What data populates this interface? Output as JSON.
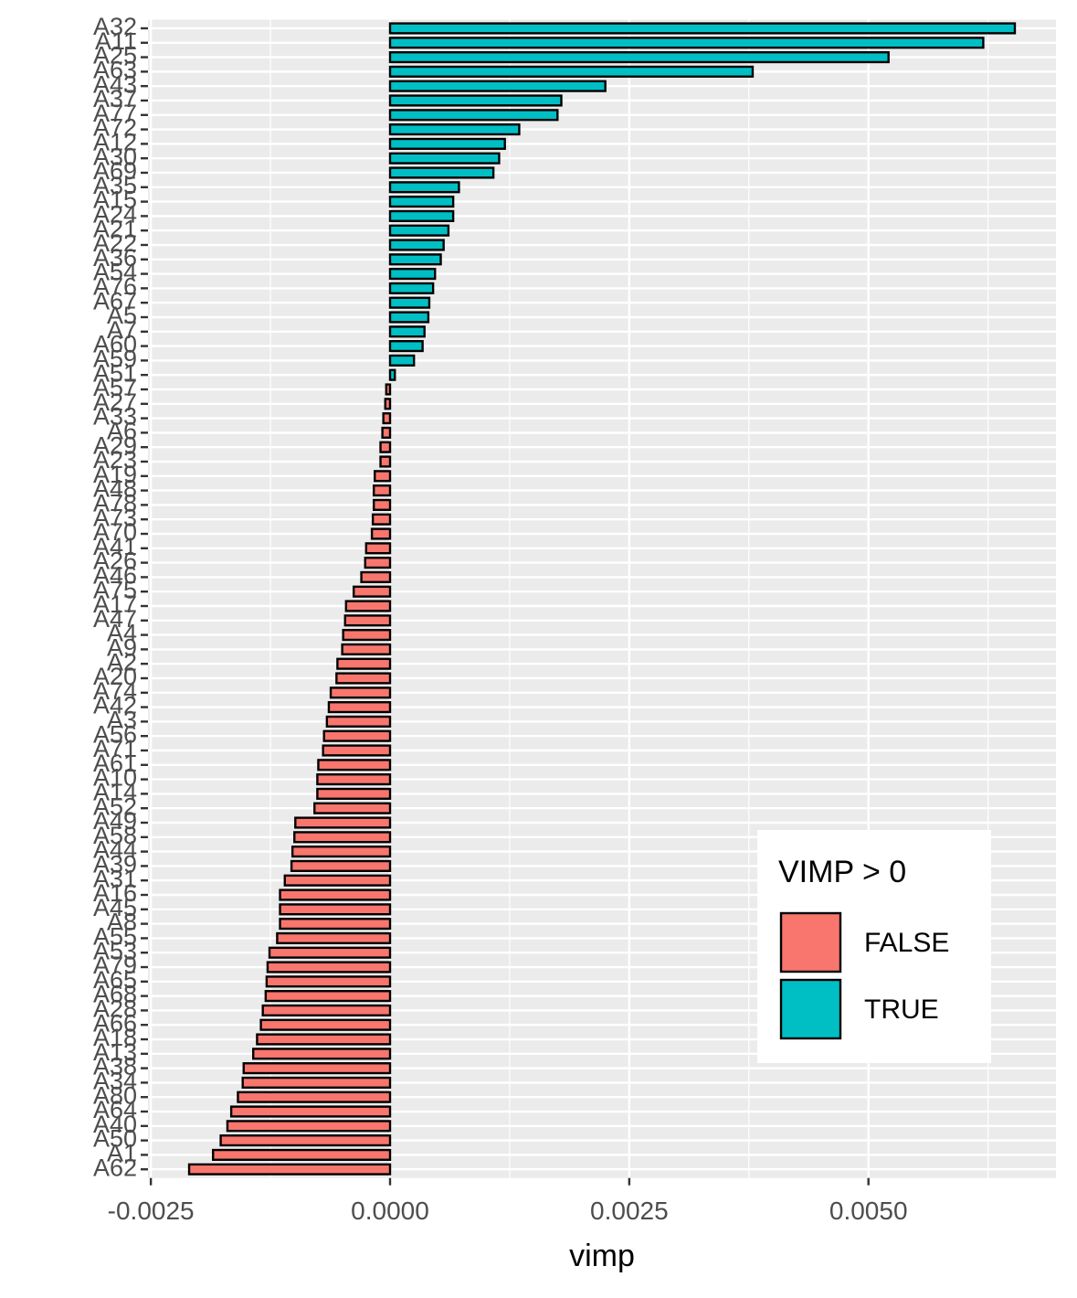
{
  "chart_data": {
    "type": "hbar",
    "x_label": "vimp",
    "categories": [
      "A32",
      "A11",
      "A25",
      "A63",
      "A43",
      "A37",
      "A77",
      "A72",
      "A12",
      "A30",
      "A69",
      "A35",
      "A15",
      "A24",
      "A21",
      "A22",
      "A36",
      "A54",
      "A76",
      "A67",
      "A5",
      "A7",
      "A60",
      "A59",
      "A51",
      "A57",
      "A27",
      "A33",
      "A6",
      "A29",
      "A23",
      "A19",
      "A48",
      "A78",
      "A73",
      "A70",
      "A41",
      "A26",
      "A46",
      "A75",
      "A17",
      "A47",
      "A4",
      "A9",
      "A2",
      "A20",
      "A74",
      "A42",
      "A3",
      "A56",
      "A71",
      "A61",
      "A10",
      "A14",
      "A52",
      "A49",
      "A58",
      "A44",
      "A39",
      "A31",
      "A16",
      "A45",
      "A8",
      "A55",
      "A53",
      "A79",
      "A65",
      "A68",
      "A28",
      "A66",
      "A18",
      "A13",
      "A38",
      "A34",
      "A80",
      "A64",
      "A40",
      "A50",
      "A1",
      "A62"
    ],
    "values": [
      0.00653,
      0.0062,
      0.00521,
      0.00379,
      0.00225,
      0.00179,
      0.00175,
      0.00135,
      0.0012,
      0.00114,
      0.00108,
      0.00072,
      0.00066,
      0.00066,
      0.00061,
      0.00056,
      0.00053,
      0.00047,
      0.00045,
      0.00041,
      0.0004,
      0.00036,
      0.00034,
      0.00025,
      5e-05,
      -4e-05,
      -5e-05,
      -7e-05,
      -8e-05,
      -0.0001,
      -0.0001,
      -0.00016,
      -0.00017,
      -0.00017,
      -0.00018,
      -0.00019,
      -0.00025,
      -0.00026,
      -0.0003,
      -0.00038,
      -0.00046,
      -0.00047,
      -0.00049,
      -0.0005,
      -0.00055,
      -0.00056,
      -0.00062,
      -0.00064,
      -0.00066,
      -0.00069,
      -0.0007,
      -0.00075,
      -0.00076,
      -0.00076,
      -0.00079,
      -0.00099,
      -0.001,
      -0.00102,
      -0.00103,
      -0.0011,
      -0.00115,
      -0.00115,
      -0.00115,
      -0.00118,
      -0.00126,
      -0.00128,
      -0.00129,
      -0.0013,
      -0.00133,
      -0.00135,
      -0.00139,
      -0.00143,
      -0.00153,
      -0.00154,
      -0.00159,
      -0.00166,
      -0.0017,
      -0.00177,
      -0.00185,
      -0.0021
    ],
    "xlim": [
      -0.00253,
      0.00696
    ],
    "xticks": [
      -0.0025,
      {
        "value": 0,
        "label": "0.0000"
      },
      0.0025,
      {
        "value": 0.005,
        "label": "0.0050"
      }
    ],
    "grid": true,
    "legend": {
      "title": "VIMP > 0",
      "position": "bottom-right",
      "entries": [
        {
          "label": "FALSE",
          "color": "#f8766d"
        },
        {
          "label": "TRUE",
          "color": "#00bfc4"
        }
      ]
    }
  }
}
